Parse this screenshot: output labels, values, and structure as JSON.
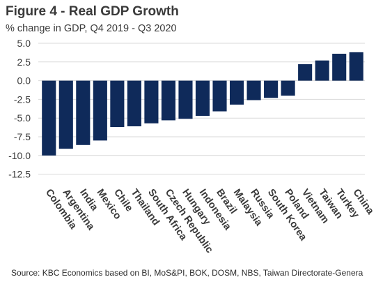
{
  "header": {
    "title": "Figure 4 - Real GDP Growth",
    "subtitle": "% change in GDP, Q4 2019 - Q3 2020"
  },
  "footer": {
    "source": "Source: KBC Economics based on BI, MoS&PI, BOK, DOSM, NBS, Taiwan Directorate-Genera"
  },
  "chart_data": {
    "type": "bar",
    "title": "Figure 4 - Real GDP Growth",
    "subtitle": "% change in GDP, Q4 2019 - Q3 2020",
    "xlabel": "",
    "ylabel": "",
    "categories": [
      "Colombia",
      "Argentina",
      "India",
      "Mexico",
      "Chile",
      "Thailand",
      "South Africa",
      "Czech Republic",
      "Hungary",
      "Indonesia",
      "Brazil",
      "Malaysia",
      "Russia",
      "South Korea",
      "Poland",
      "Vietnam",
      "Taiwan",
      "Turkey",
      "China"
    ],
    "values": [
      -10.0,
      -9.1,
      -8.6,
      -8.0,
      -6.2,
      -6.1,
      -5.7,
      -5.3,
      -5.1,
      -4.7,
      -4.1,
      -3.2,
      -2.6,
      -2.3,
      -2.0,
      2.2,
      2.7,
      3.6,
      3.8
    ],
    "yticks": [
      5.0,
      2.5,
      0.0,
      -2.5,
      -5.0,
      -7.5,
      -10.0,
      -12.5
    ],
    "ytick_labels": [
      "5.0",
      "2.5",
      "0.0",
      "-2.5",
      "-5.0",
      "-7.5",
      "-10.0",
      "-12.5"
    ],
    "ylim": [
      -13.75,
      5.0
    ],
    "grid": true,
    "legend": "none",
    "colors": {
      "bar": "#0f2a5a",
      "grid": "#d9d9d9",
      "axis": "#bfbfbf",
      "text": "#3a3a3a"
    }
  }
}
